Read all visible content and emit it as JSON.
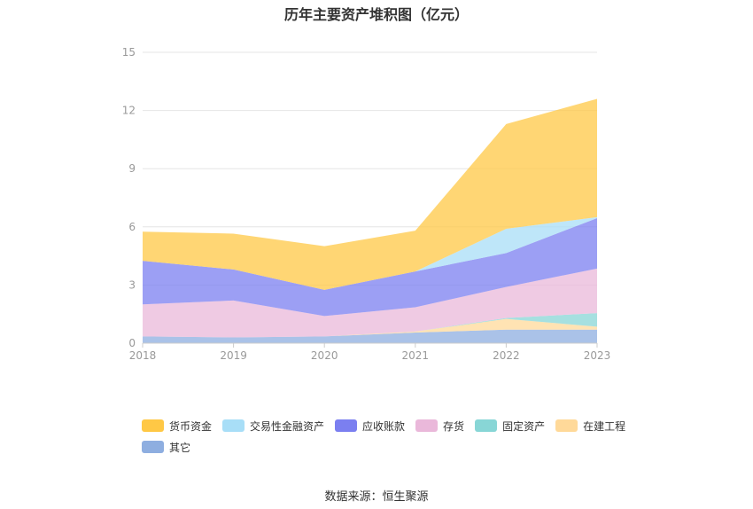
{
  "chart_data": {
    "type": "area",
    "stacked": true,
    "title": "历年主要资产堆积图（亿元）",
    "source": "数据来源：恒生聚源",
    "x": [
      "2018",
      "2019",
      "2020",
      "2021",
      "2022",
      "2023"
    ],
    "ylim": [
      0,
      15
    ],
    "yticks": [
      "0",
      "3",
      "6",
      "9",
      "12",
      "15"
    ],
    "grid": true,
    "legend_position": "bottom",
    "series": [
      {
        "name": "其它",
        "color": "#8eaee0",
        "values": [
          0.35,
          0.3,
          0.35,
          0.55,
          0.7,
          0.7
        ]
      },
      {
        "name": "在建工程",
        "color": "#ffd999",
        "values": [
          0.0,
          0.0,
          0.0,
          0.05,
          0.55,
          0.15
        ]
      },
      {
        "name": "固定资产",
        "color": "#88d6d6",
        "values": [
          0.0,
          0.0,
          0.0,
          0.0,
          0.05,
          0.7
        ]
      },
      {
        "name": "存货",
        "color": "#eab8da",
        "values": [
          1.65,
          1.9,
          1.05,
          1.25,
          1.6,
          2.3
        ]
      },
      {
        "name": "应收账款",
        "color": "#7b7ff0",
        "values": [
          2.25,
          1.6,
          1.35,
          1.85,
          1.75,
          2.6
        ]
      },
      {
        "name": "交易性金融资产",
        "color": "#a8def7",
        "values": [
          0.0,
          0.0,
          0.0,
          0.0,
          1.25,
          0.05
        ]
      },
      {
        "name": "货币资金",
        "color": "#ffc845",
        "values": [
          1.5,
          1.85,
          2.25,
          2.1,
          5.4,
          6.1
        ]
      }
    ]
  },
  "legend_order": [
    {
      "name": "货币资金",
      "color": "#ffc845"
    },
    {
      "name": "交易性金融资产",
      "color": "#a8def7"
    },
    {
      "name": "应收账款",
      "color": "#7b7ff0"
    },
    {
      "name": "存货",
      "color": "#eab8da"
    },
    {
      "name": "固定资产",
      "color": "#88d6d6"
    },
    {
      "name": "在建工程",
      "color": "#ffd999"
    },
    {
      "name": "其它",
      "color": "#8eaee0"
    }
  ]
}
